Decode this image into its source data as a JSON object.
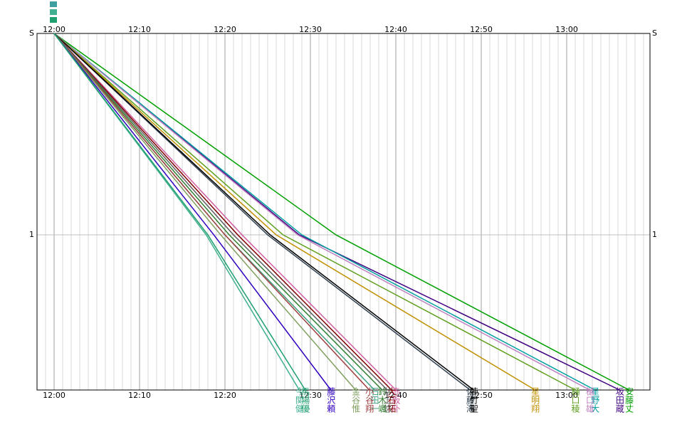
{
  "chart_data": {
    "type": "line",
    "grid": true,
    "y_inverted": true,
    "minor_grid_step": 1,
    "xlim": [
      -2,
      69.75
    ],
    "ylim": [
      0,
      1.77
    ],
    "xticks": [
      {
        "value": 0,
        "label": "12:00"
      },
      {
        "value": 10,
        "label": "12:10"
      },
      {
        "value": 20,
        "label": "12:20"
      },
      {
        "value": 30,
        "label": "12:30"
      },
      {
        "value": 40,
        "label": "12:40"
      },
      {
        "value": 50,
        "label": "12:50"
      },
      {
        "value": 60,
        "label": "13:00"
      }
    ],
    "yticks": [
      {
        "value": 0,
        "label": "S"
      },
      1
    ],
    "series": [
      {
        "name": "安藤丈",
        "color": "#00a000",
        "x": [
          0,
          33,
          67.3
        ],
        "values": [
          0,
          1,
          1.77
        ]
      },
      {
        "name": "坂田蔵",
        "color": "#400080",
        "x": [
          0,
          28.7,
          66.2
        ],
        "values": [
          0,
          1,
          1.77
        ]
      },
      {
        "name": "星野大",
        "color": "#00a0a0",
        "x": [
          0,
          29,
          63.3
        ],
        "values": [
          0,
          1,
          1.77
        ]
      },
      {
        "name": "樋口雄",
        "color": "#c080c0",
        "x": [
          0,
          28.5,
          62.7
        ],
        "values": [
          0,
          1,
          1.77
        ]
      },
      {
        "name": "樋口稜",
        "color": "#60a020",
        "x": [
          0,
          26.8,
          61
        ],
        "values": [
          0,
          1,
          1.77
        ]
      },
      {
        "name": "星明翔",
        "color": "#c09000",
        "x": [
          0,
          26,
          56.3
        ],
        "values": [
          0,
          1,
          1.77
        ]
      },
      {
        "name": "佐藤海",
        "color": "#304050",
        "x": [
          0,
          25,
          48.7
        ],
        "values": [
          0,
          1,
          1.77
        ]
      },
      {
        "name": "陣竹聖",
        "color": "#000000",
        "x": [
          0,
          25.3,
          49.1
        ],
        "values": [
          0,
          1,
          1.77
        ]
      },
      {
        "name": "赤坂卟",
        "color": "#d060a0",
        "x": [
          0,
          22,
          40
        ],
        "values": [
          0,
          1,
          1.77
        ]
      },
      {
        "name": "大石拓",
        "color": "#800000",
        "x": [
          0,
          21.5,
          39.5
        ],
        "values": [
          0,
          1,
          1.77
        ]
      },
      {
        "name": "井上悠",
        "color": "#606060",
        "x": [
          0,
          21,
          39
        ],
        "values": [
          0,
          1,
          1.77
        ]
      },
      {
        "name": "鈴木颯",
        "color": "#308030",
        "x": [
          0,
          20.5,
          38.4
        ],
        "values": [
          0,
          1,
          1.77
        ]
      },
      {
        "name": "石田一",
        "color": "#40a080",
        "x": [
          0,
          20,
          37.5
        ],
        "values": [
          0,
          1,
          1.77
        ]
      },
      {
        "name": "小谷翔",
        "color": "#a04040",
        "x": [
          0,
          20,
          36.9
        ],
        "values": [
          0,
          1,
          1.77
        ]
      },
      {
        "name": "金谷惟",
        "color": "#80a060",
        "x": [
          0,
          19.5,
          35.3
        ],
        "values": [
          0,
          1,
          1.77
        ]
      },
      {
        "name": "藤沢頼",
        "color": "#3000c0",
        "x": [
          0,
          18.7,
          32.4
        ],
        "values": [
          0,
          1,
          1.77
        ]
      },
      {
        "name": "今関健",
        "color": "#40b090",
        "x": [
          0,
          17.8,
          28.7
        ],
        "values": [
          0,
          1,
          1.77
        ]
      },
      {
        "name": "馬場優",
        "color": "#20a070",
        "x": [
          0,
          18,
          29.4
        ],
        "values": [
          0,
          1,
          1.77
        ]
      }
    ]
  }
}
